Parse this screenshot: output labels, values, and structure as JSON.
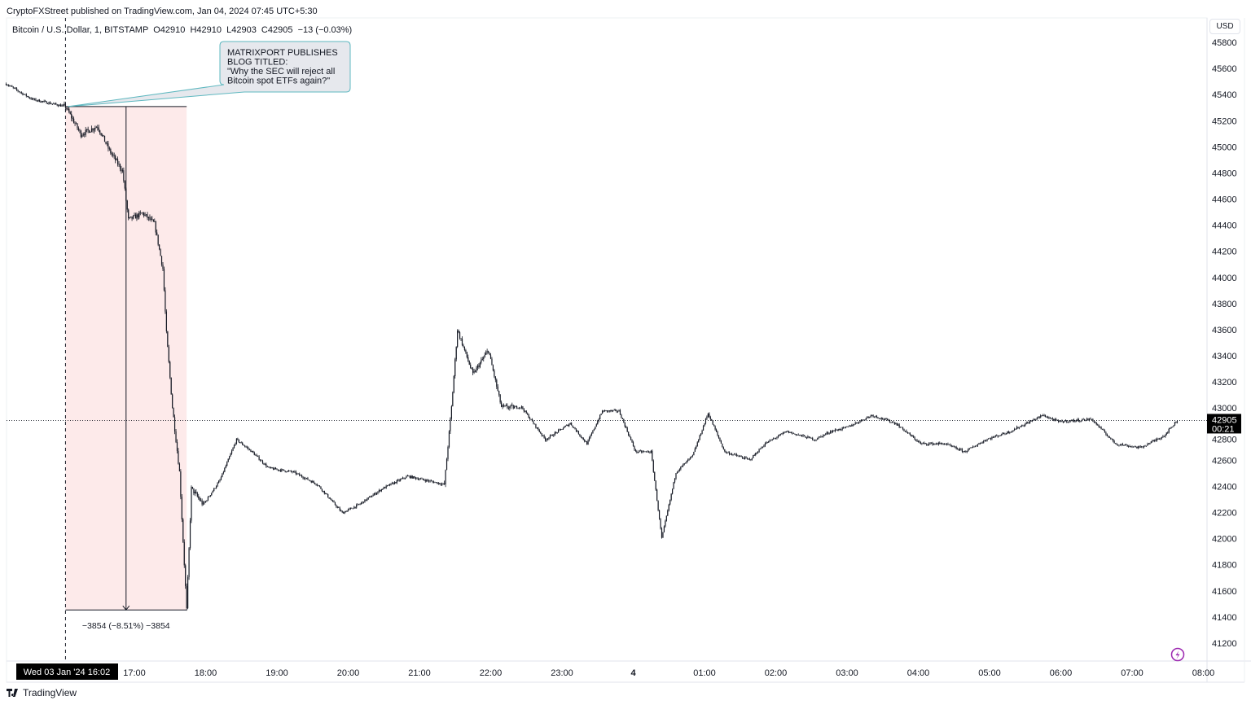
{
  "header": {
    "publisher": "CryptoFXStreet published on TradingView.com, Jan 04, 2024 07:45 UTC+5:30",
    "legend": "Bitcoin / U.S. Dollar, 1, BITSTAMP  O42910  H42910  L42903  C42905  −13 (−0.03%)"
  },
  "annotation": {
    "lines": [
      "MATRIXPORT PUBLISHES",
      "BLOG TITLED:",
      "\"Why the SEC will reject all",
      "Bitcoin spot ETFs again?\""
    ],
    "anchor_time": "16:02",
    "anchor_price": 45308
  },
  "measure": {
    "label": "−3854 (−8.51%) −3854",
    "start_time": "16:02",
    "end_time": "17:44",
    "start_price": 45308,
    "end_price": 41454
  },
  "footer": {
    "brand": "TradingView"
  },
  "colors": {
    "candle": "#131722",
    "measure_fill": "#fdeaea",
    "callout_border": "#5fb8c0",
    "callout_fill": "#e6e8ed",
    "bolt": "#9c27b0"
  },
  "chart_data": {
    "type": "candlestick",
    "symbol": "Bitcoin / U.S. Dollar",
    "interval": "1",
    "exchange": "BITSTAMP",
    "currency": "USD",
    "ylim": [
      41100,
      45900
    ],
    "yticks": [
      45800,
      45600,
      45400,
      45200,
      45000,
      44800,
      44600,
      44400,
      44200,
      44000,
      43800,
      43600,
      43400,
      43200,
      43000,
      42800,
      42600,
      42400,
      42200,
      42000,
      41800,
      41600,
      41400,
      41200
    ],
    "xticks": [
      {
        "time": "17:00",
        "label": "17:00"
      },
      {
        "time": "18:00",
        "label": "18:00"
      },
      {
        "time": "19:00",
        "label": "19:00"
      },
      {
        "time": "20:00",
        "label": "20:00"
      },
      {
        "time": "21:00",
        "label": "21:00"
      },
      {
        "time": "22:00",
        "label": "22:00"
      },
      {
        "time": "23:00",
        "label": "23:00"
      },
      {
        "time": "+00:00",
        "label": "4"
      },
      {
        "time": "+01:00",
        "label": "01:00"
      },
      {
        "time": "+02:00",
        "label": "02:00"
      },
      {
        "time": "+03:00",
        "label": "03:00"
      },
      {
        "time": "+04:00",
        "label": "04:00"
      },
      {
        "time": "+05:00",
        "label": "05:00"
      },
      {
        "time": "+06:00",
        "label": "06:00"
      },
      {
        "time": "+07:00",
        "label": "07:00"
      },
      {
        "time": "+08:00",
        "label": "08:00"
      }
    ],
    "crosshair_time_label": "Wed 03 Jan '24   16:02",
    "last_price": 42905,
    "last_price_label": "42905",
    "countdown": "00:21",
    "price_path": [
      [
        "15:12",
        45482
      ],
      [
        "15:34",
        45364
      ],
      [
        "16:02",
        45308
      ],
      [
        "16:15",
        45096
      ],
      [
        "16:29",
        45158
      ],
      [
        "16:39",
        44971
      ],
      [
        "16:50",
        44815
      ],
      [
        "16:55",
        44441
      ],
      [
        "17:07",
        44491
      ],
      [
        "17:17",
        44410
      ],
      [
        "17:24",
        44067
      ],
      [
        "17:27",
        43568
      ],
      [
        "17:32",
        43007
      ],
      [
        "17:38",
        42509
      ],
      [
        "17:44",
        41454
      ],
      [
        "17:48",
        42384
      ],
      [
        "17:58",
        42259
      ],
      [
        "18:12",
        42447
      ],
      [
        "18:26",
        42758
      ],
      [
        "18:39",
        42665
      ],
      [
        "18:53",
        42540
      ],
      [
        "19:14",
        42509
      ],
      [
        "19:34",
        42415
      ],
      [
        "19:55",
        42197
      ],
      [
        "20:09",
        42260
      ],
      [
        "20:29",
        42384
      ],
      [
        "20:50",
        42478
      ],
      [
        "21:21",
        42415
      ],
      [
        "21:27",
        43007
      ],
      [
        "21:32",
        43600
      ],
      [
        "21:45",
        43257
      ],
      [
        "21:58",
        43444
      ],
      [
        "22:09",
        43007
      ],
      [
        "22:26",
        43007
      ],
      [
        "22:46",
        42758
      ],
      [
        "23:07",
        42883
      ],
      [
        "23:21",
        42727
      ],
      [
        "23:34",
        42977
      ],
      [
        "23:48",
        42977
      ],
      [
        "+00:02",
        42665
      ],
      [
        "+00:15",
        42665
      ],
      [
        "+00:24",
        42000
      ],
      [
        "+00:36",
        42509
      ],
      [
        "+00:50",
        42634
      ],
      [
        "+01:03",
        42960
      ],
      [
        "+01:17",
        42665
      ],
      [
        "+01:38",
        42603
      ],
      [
        "+01:51",
        42727
      ],
      [
        "+02:09",
        42820
      ],
      [
        "+02:33",
        42758
      ],
      [
        "+02:46",
        42820
      ],
      [
        "+03:00",
        42852
      ],
      [
        "+03:21",
        42945
      ],
      [
        "+03:41",
        42883
      ],
      [
        "+04:02",
        42727
      ],
      [
        "+04:22",
        42727
      ],
      [
        "+04:39",
        42665
      ],
      [
        "+04:57",
        42758
      ],
      [
        "+05:17",
        42820
      ],
      [
        "+05:45",
        42945
      ],
      [
        "+05:58",
        42895
      ],
      [
        "+06:26",
        42914
      ],
      [
        "+06:46",
        42727
      ],
      [
        "+07:07",
        42696
      ],
      [
        "+07:27",
        42789
      ],
      [
        "+07:38",
        42905
      ]
    ]
  }
}
